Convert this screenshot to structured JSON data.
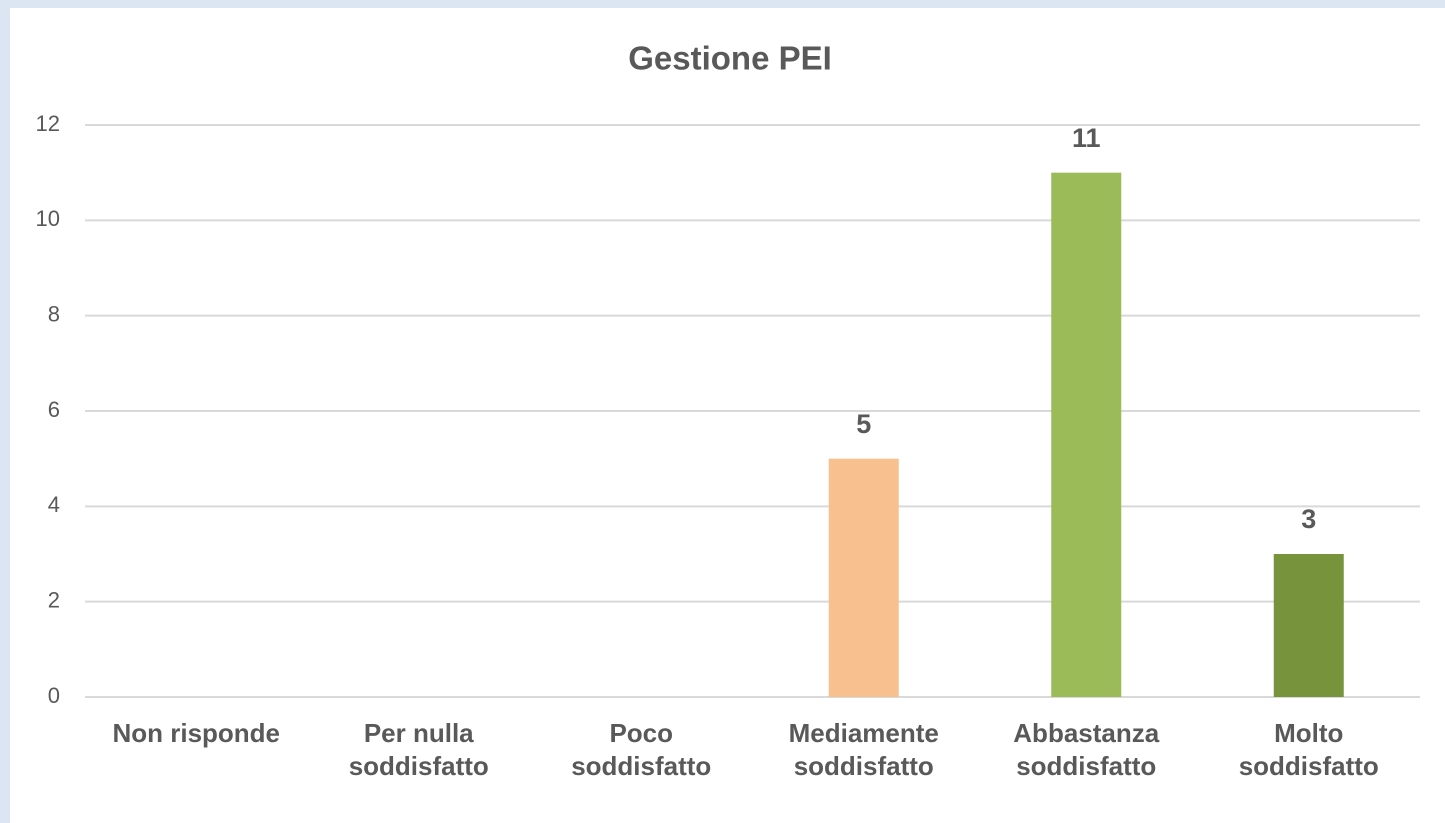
{
  "chart_data": {
    "type": "bar",
    "title": "Gestione PEI",
    "categories": [
      "Non risponde",
      "Per nulla soddisfatto",
      "Poco soddisfatto",
      "Mediamente soddisfatto",
      "Abbastanza soddisfatto",
      "Molto soddisfatto"
    ],
    "values": [
      0,
      0,
      0,
      5,
      11,
      3
    ],
    "colors": [
      null,
      null,
      null,
      "#f8c08f",
      "#9bbb59",
      "#77933c"
    ],
    "ylim": [
      0,
      12
    ],
    "yticks": [
      0,
      2,
      4,
      6,
      8,
      10,
      12
    ],
    "grid": true
  }
}
